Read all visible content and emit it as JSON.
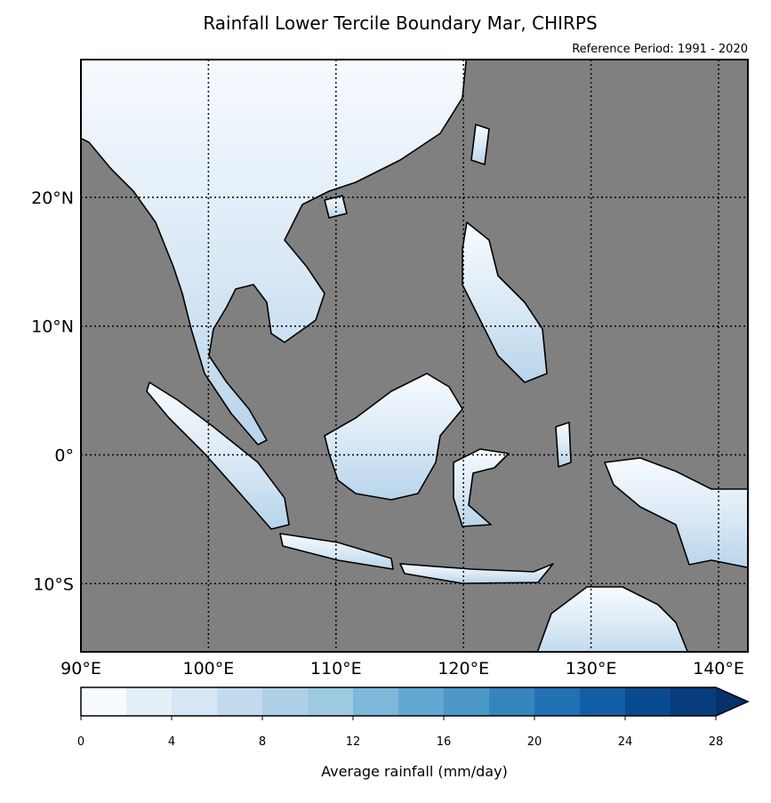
{
  "map": {
    "title": "Rainfall Lower Tercile Boundary Mar, CHIRPS",
    "subtitle": "Reference Period: 1991 - 2020",
    "xlim": [
      90,
      142.3
    ],
    "ylim": [
      -15.3,
      30.7
    ],
    "xticks": [
      {
        "value": 90,
        "label": "90°E"
      },
      {
        "value": 100,
        "label": "100°E"
      },
      {
        "value": 110,
        "label": "110°E"
      },
      {
        "value": 120,
        "label": "120°E"
      },
      {
        "value": 130,
        "label": "130°E"
      },
      {
        "value": 140,
        "label": "140°E"
      }
    ],
    "yticks": [
      {
        "value": 20,
        "label": "20°N"
      },
      {
        "value": 10,
        "label": "10°N"
      },
      {
        "value": 0,
        "label": "0°"
      },
      {
        "value": -10,
        "label": "10°S"
      }
    ],
    "colorbar": {
      "label": "Average rainfall (mm/day)",
      "levels": [
        0,
        2,
        4,
        6,
        8,
        10,
        12,
        14,
        16,
        18,
        20,
        22,
        24,
        26,
        28
      ],
      "colors": [
        "#f7fbff",
        "#e4eff9",
        "#d6e6f4",
        "#c4daee",
        "#afd1e7",
        "#9dcae1",
        "#7db8da",
        "#62a8d3",
        "#4b98c9",
        "#3585bf",
        "#2171b5",
        "#125ea6",
        "#0a4a91",
        "#083c7d",
        "#08306b"
      ],
      "ticks": [
        0,
        4,
        8,
        12,
        16,
        20,
        24,
        28
      ]
    }
  }
}
